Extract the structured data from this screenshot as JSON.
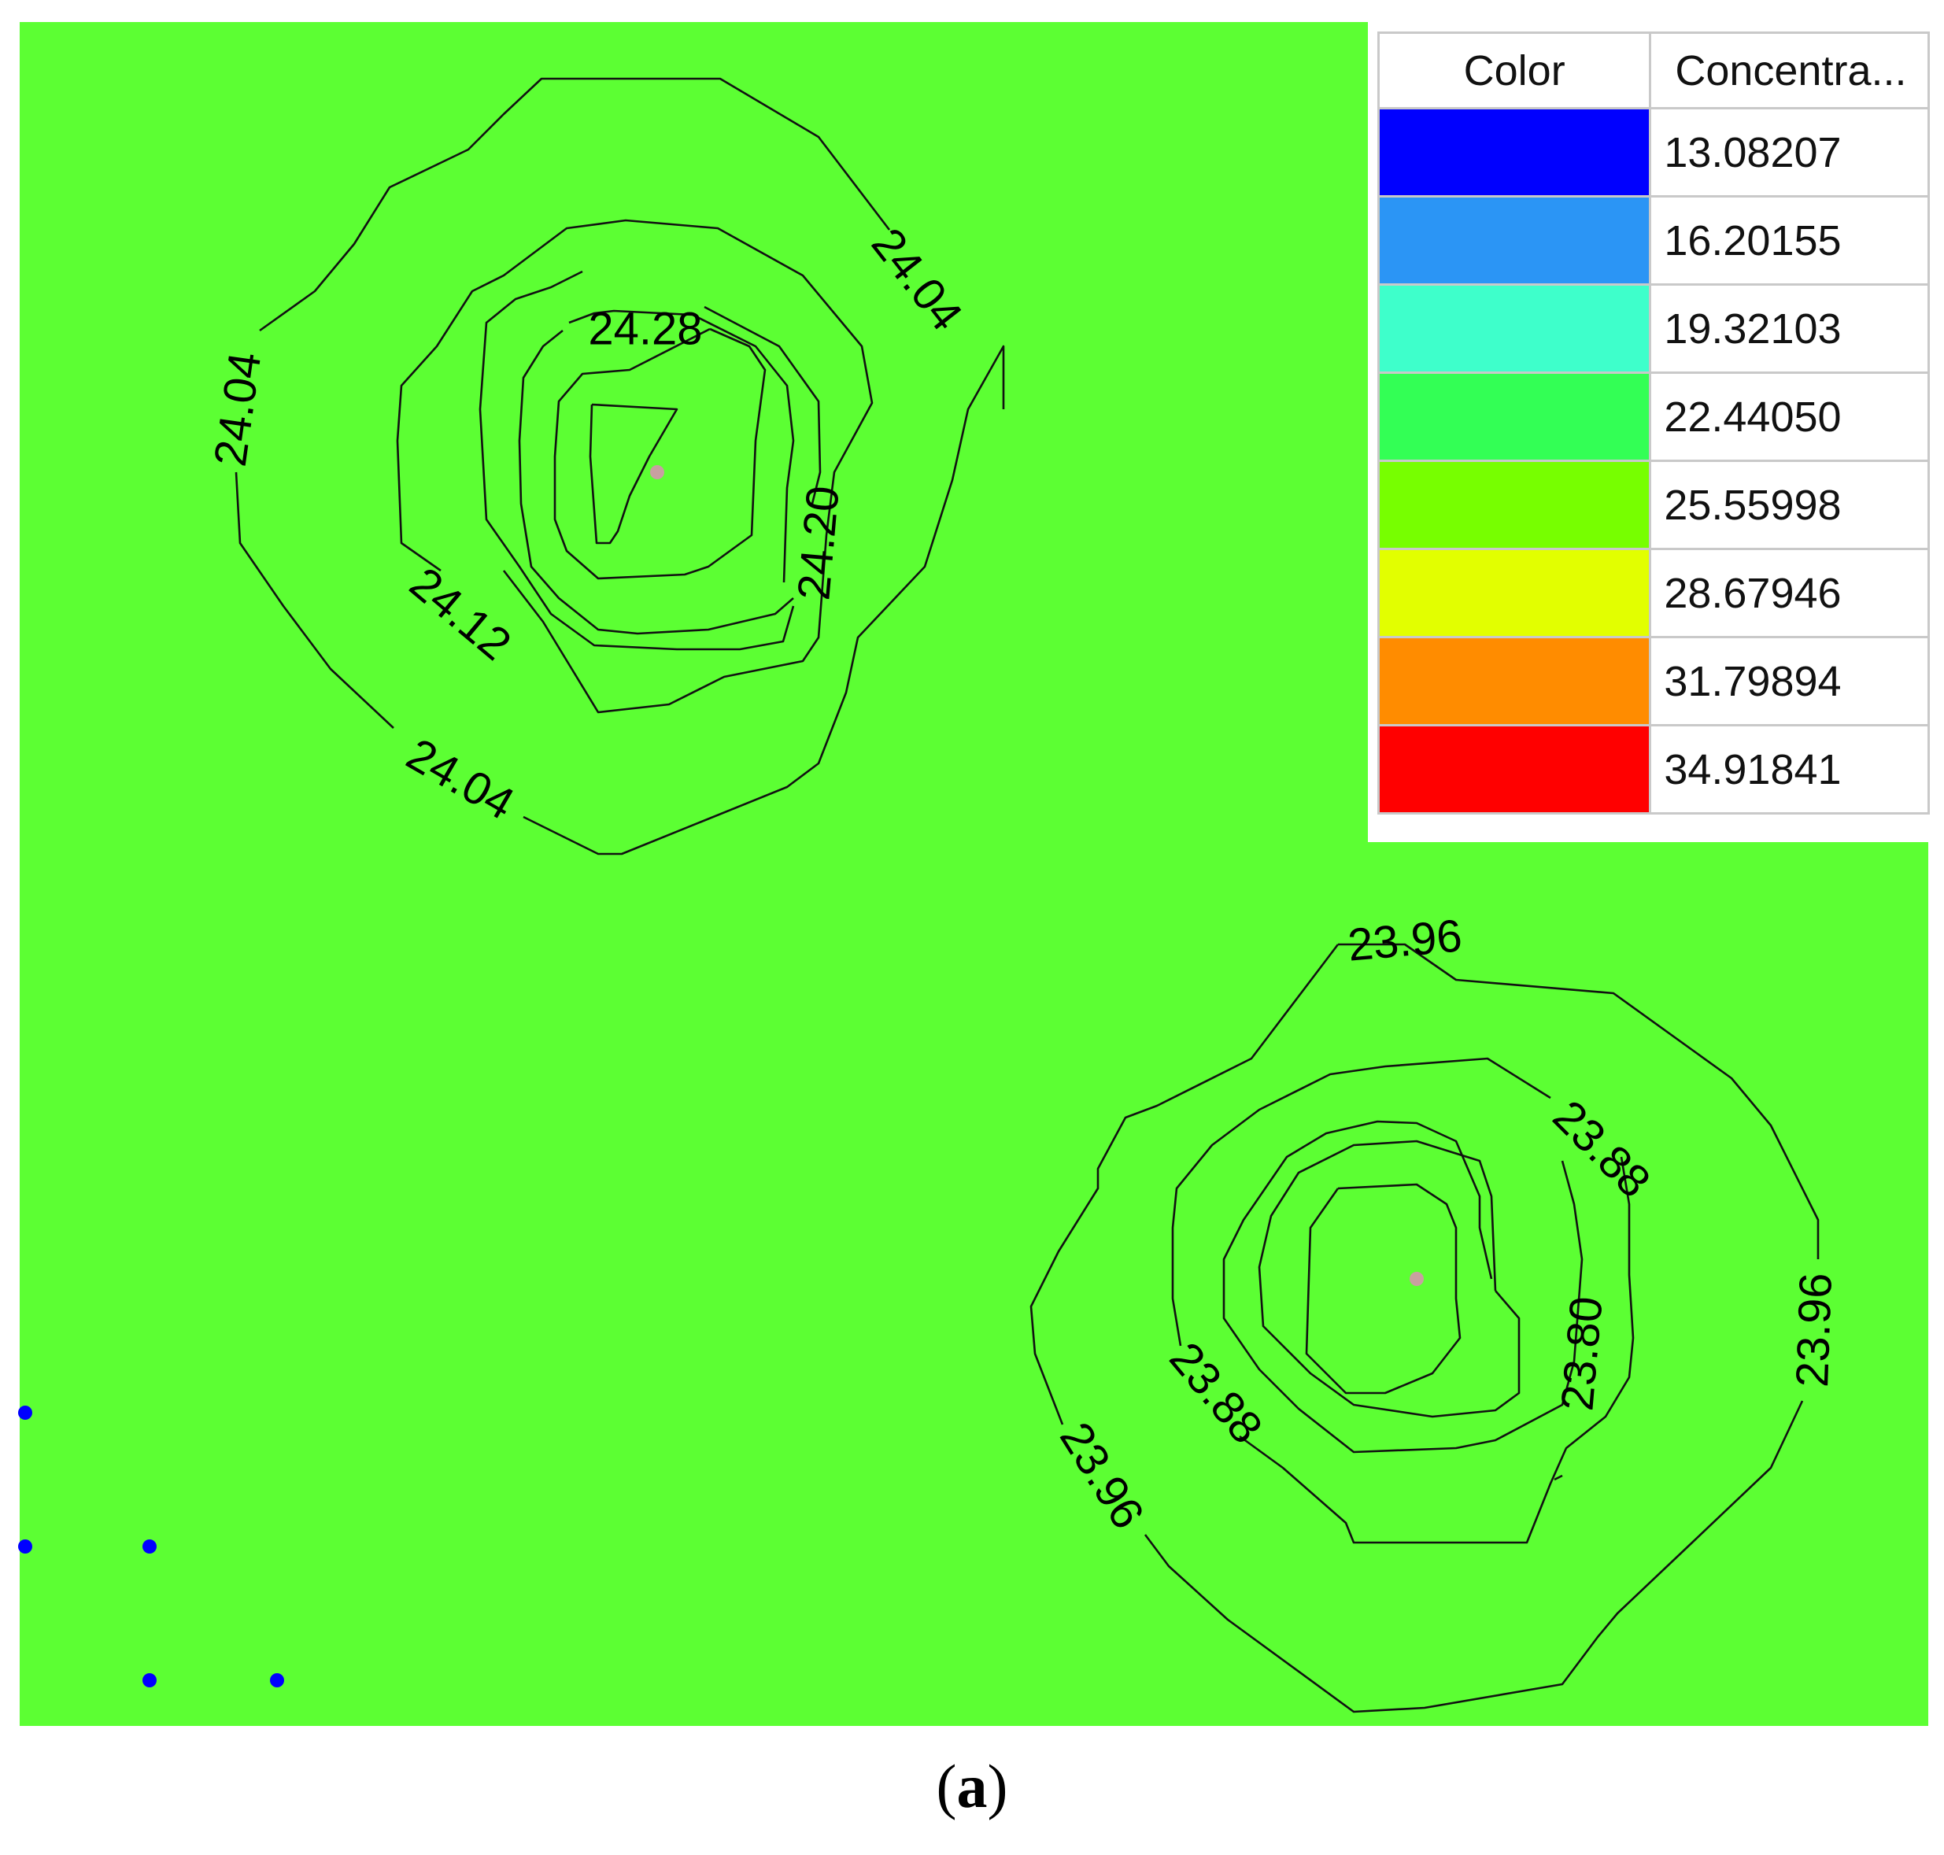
{
  "map": {
    "background_color": "#5cff33",
    "contour_labels": {
      "a1": "24.04",
      "a2": "24.04",
      "a3": "24.04",
      "a4": "24.12",
      "a5": "24.20",
      "a6": "24.28",
      "b1": "23.96",
      "b2": "23.96",
      "b3": "23.96",
      "b4": "23.88",
      "b5": "23.88",
      "b6": "23.80"
    },
    "source_point_color": "#c8a0a0",
    "observation_point_color": "#0000ff"
  },
  "legend": {
    "header_color": "Color",
    "header_concentration": "Concentra...",
    "rows": [
      {
        "color": "#0000ff",
        "value": "13.08207"
      },
      {
        "color": "#2b95f5",
        "value": "16.20155"
      },
      {
        "color": "#3effcb",
        "value": "19.32103"
      },
      {
        "color": "#33ff55",
        "value": "22.44050"
      },
      {
        "color": "#77ff00",
        "value": "25.55998"
      },
      {
        "color": "#e2ff00",
        "value": "28.67946"
      },
      {
        "color": "#ff8c00",
        "value": "31.79894"
      },
      {
        "color": "#ff0000",
        "value": "34.91841"
      }
    ]
  },
  "caption": {
    "open": "(",
    "letter": "a",
    "close": ")"
  }
}
